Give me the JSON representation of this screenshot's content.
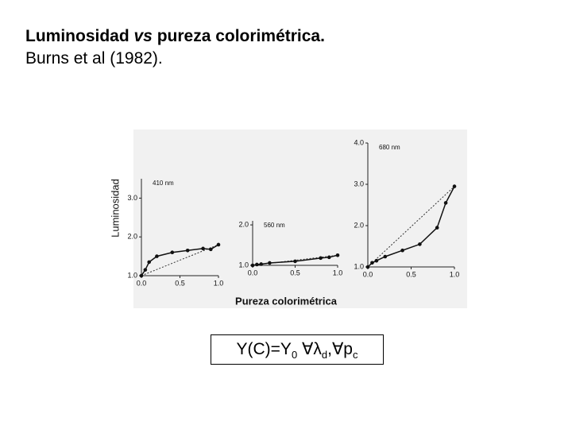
{
  "slide": {
    "title_a": "Luminosidad ",
    "title_b": "vs",
    "title_c": " pureza colorimétrica.",
    "subtitle": "Burns et al (1982)."
  },
  "shared": {
    "x_label": "Pureza colorimétrica",
    "y_label": "Luminosidad"
  },
  "formula": [
    "Y(C)=Y",
    "0",
    " ∀λ",
    "d",
    ",∀p",
    "c"
  ],
  "chart_data": [
    {
      "type": "line",
      "title": "410 nm",
      "color": "#111",
      "x": [
        0,
        0.05,
        0.1,
        0.2,
        0.4,
        0.6,
        0.8,
        0.9,
        1.0
      ],
      "values": [
        1.0,
        1.15,
        1.35,
        1.5,
        1.6,
        1.65,
        1.7,
        1.68,
        1.8
      ],
      "reference": {
        "x": [
          0,
          1.0
        ],
        "values": [
          1.0,
          1.8
        ]
      },
      "xlim": [
        0,
        1.0
      ],
      "ylim": [
        1.0,
        3.5
      ],
      "xticks": [
        {
          "value": 0,
          "label": "0.0"
        },
        {
          "value": 0.5,
          "label": "0.5"
        },
        {
          "value": 1,
          "label": "1.0"
        }
      ],
      "yticks": [
        {
          "value": 1,
          "label": "1.0"
        },
        {
          "value": 2,
          "label": "2.0"
        },
        {
          "value": 3,
          "label": "3.0"
        }
      ]
    },
    {
      "type": "line",
      "title": "560 nm",
      "color": "#111",
      "x": [
        0,
        0.05,
        0.1,
        0.2,
        0.5,
        0.8,
        0.9,
        1.0
      ],
      "values": [
        1.0,
        1.02,
        1.03,
        1.06,
        1.1,
        1.18,
        1.2,
        1.25
      ],
      "reference": {
        "x": [
          0,
          1.0
        ],
        "values": [
          1.0,
          1.25
        ]
      },
      "xlim": [
        0,
        1.0
      ],
      "ylim": [
        1.0,
        2.1
      ],
      "xticks": [
        {
          "value": 0,
          "label": "0.0"
        },
        {
          "value": 0.5,
          "label": "0.5"
        },
        {
          "value": 1,
          "label": "1.0"
        }
      ],
      "yticks": [
        {
          "value": 1,
          "label": "1.0"
        },
        {
          "value": 2,
          "label": "2.0"
        }
      ]
    },
    {
      "type": "line",
      "title": "680 nm",
      "color": "#111",
      "x": [
        0,
        0.05,
        0.1,
        0.2,
        0.4,
        0.6,
        0.8,
        0.9,
        1.0
      ],
      "values": [
        1.0,
        1.1,
        1.15,
        1.25,
        1.4,
        1.55,
        1.95,
        2.55,
        2.95
      ],
      "reference": {
        "x": [
          0,
          1.0
        ],
        "values": [
          1.0,
          2.95
        ]
      },
      "xlim": [
        0,
        1.0
      ],
      "ylim": [
        1.0,
        4.0
      ],
      "xticks": [
        {
          "value": 0,
          "label": "0.0"
        },
        {
          "value": 0.5,
          "label": "0.5"
        },
        {
          "value": 1,
          "label": "1.0"
        }
      ],
      "yticks": [
        {
          "value": 1,
          "label": "1.0"
        },
        {
          "value": 2,
          "label": "2.0"
        },
        {
          "value": 3,
          "label": "3.0"
        },
        {
          "value": 4,
          "label": "4.0"
        }
      ]
    }
  ]
}
